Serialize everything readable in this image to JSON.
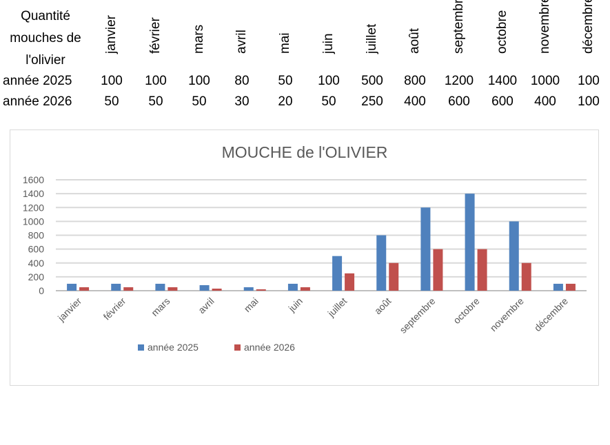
{
  "table": {
    "title_lines": [
      "Quantité",
      "mouches de",
      "l'olivier"
    ],
    "months": [
      "janvier",
      "février",
      "mars",
      "avril",
      "mai",
      "juin",
      "juillet",
      "août",
      "septembre",
      "octobre",
      "novembre",
      "décembre"
    ],
    "rows": [
      {
        "label": "année 2025",
        "values": [
          100,
          100,
          100,
          80,
          50,
          100,
          500,
          800,
          1200,
          1400,
          1000,
          100
        ]
      },
      {
        "label": "année 2026",
        "values": [
          50,
          50,
          50,
          30,
          20,
          50,
          250,
          400,
          600,
          600,
          400,
          100
        ]
      }
    ]
  },
  "chart_data": {
    "type": "bar",
    "title": "MOUCHE de l'OLIVIER",
    "categories": [
      "janvier",
      "février",
      "mars",
      "avril",
      "mai",
      "juin",
      "juillet",
      "août",
      "septembre",
      "octobre",
      "novembre",
      "décembre"
    ],
    "series": [
      {
        "name": "année 2025",
        "color": "#4f81bd",
        "values": [
          100,
          100,
          100,
          80,
          50,
          100,
          500,
          800,
          1200,
          1400,
          1000,
          100
        ]
      },
      {
        "name": "année 2026",
        "color": "#c0504d",
        "values": [
          50,
          50,
          50,
          30,
          20,
          50,
          250,
          400,
          600,
          600,
          400,
          100
        ]
      }
    ],
    "yticks": [
      0,
      200,
      400,
      600,
      800,
      1000,
      1200,
      1400,
      1600
    ],
    "ylim": [
      0,
      1600
    ],
    "grid": true,
    "legend": "bottom-left"
  }
}
